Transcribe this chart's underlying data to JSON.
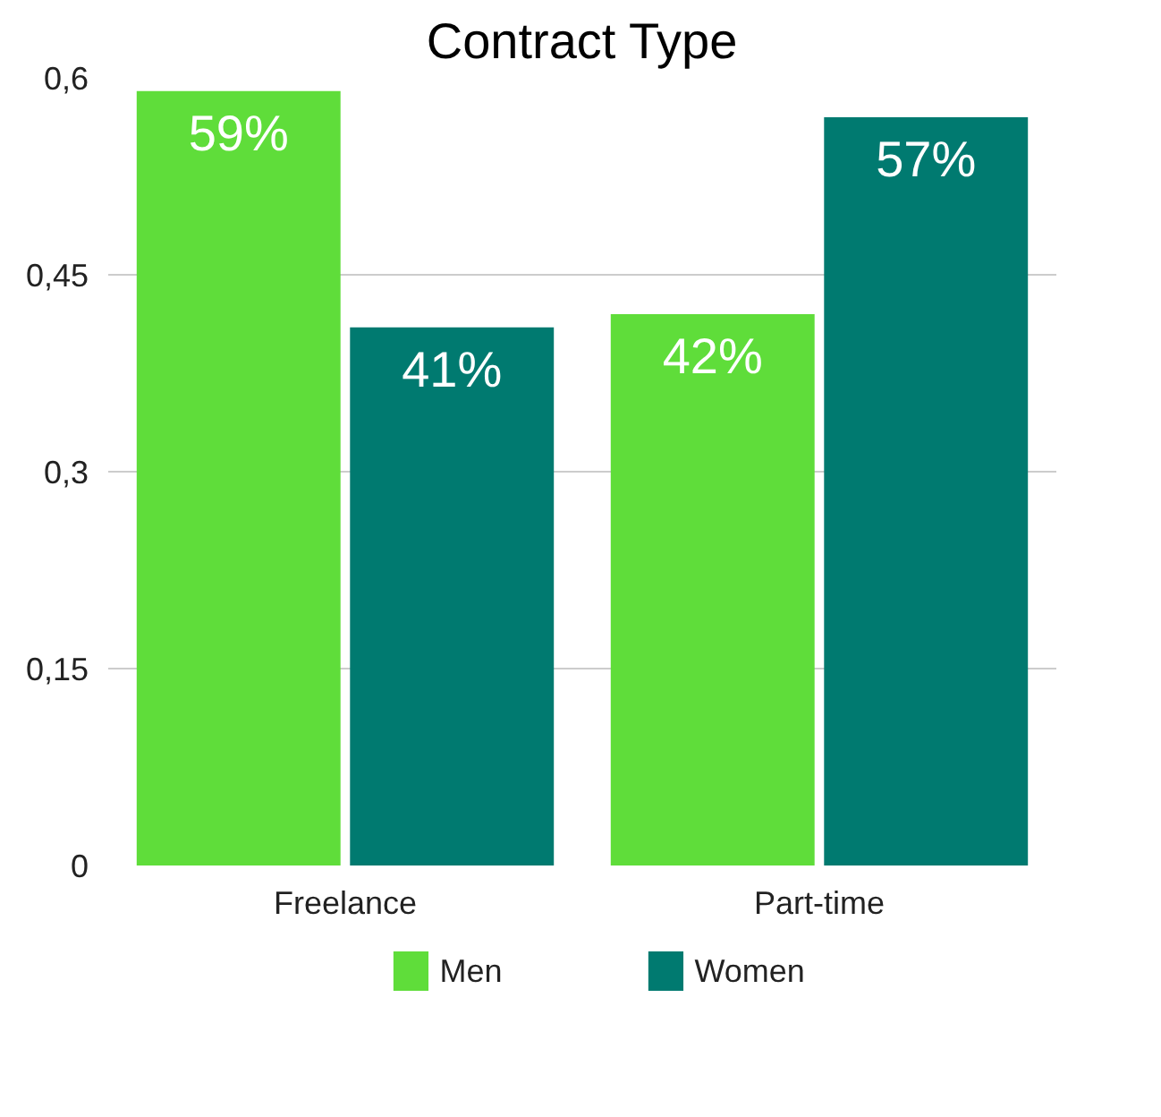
{
  "chart_data": {
    "type": "bar",
    "title": "Contract Type",
    "categories": [
      "Freelance",
      "Part-time"
    ],
    "series": [
      {
        "name": "Men",
        "color": "#5fdd3a",
        "values": [
          0.59,
          0.42
        ],
        "value_labels": [
          "59%",
          "42%"
        ]
      },
      {
        "name": "Women",
        "color": "#007a70",
        "values": [
          0.41,
          0.57
        ],
        "value_labels": [
          "41%",
          "57%"
        ]
      }
    ],
    "ylim": [
      0,
      0.6
    ],
    "yticks": [
      {
        "value": 0,
        "label": "0"
      },
      {
        "value": 0.15,
        "label": "0,15"
      },
      {
        "value": 0.3,
        "label": "0,3"
      },
      {
        "value": 0.45,
        "label": "0,45"
      },
      {
        "value": 0.6,
        "label": "0,6"
      }
    ],
    "grid": "y",
    "legend": "bottom"
  }
}
